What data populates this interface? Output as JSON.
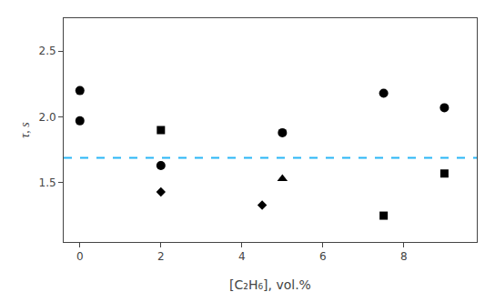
{
  "chart_data": {
    "type": "scatter",
    "xlabel": "[C₂H₆], vol.%",
    "ylabel": "τ, s",
    "series": [
      {
        "marker": "circle",
        "color": "black",
        "x": [
          0,
          0,
          2,
          5,
          7.5,
          9
        ],
        "values": [
          2.2,
          1.97,
          1.63,
          1.88,
          2.18,
          2.07
        ]
      },
      {
        "marker": "square",
        "color": "black",
        "x": [
          2,
          7.5,
          9
        ],
        "values": [
          1.9,
          1.25,
          1.57
        ]
      },
      {
        "marker": "triangle-up",
        "color": "black",
        "x": [
          5
        ],
        "values": [
          1.53
        ]
      },
      {
        "marker": "diamond",
        "color": "black",
        "x": [
          2,
          4.5
        ],
        "values": [
          1.43,
          1.33
        ]
      },
      {
        "type": "hline",
        "line_style": "dashed",
        "color": "#29B6F6",
        "values": [
          1.69
        ]
      }
    ],
    "xlim": [
      -0.4,
      9.8
    ],
    "ylim": [
      1.05,
      2.75
    ],
    "xticks": [
      0,
      2,
      4,
      6,
      8
    ],
    "yticks": [
      1.5,
      {
        "value": 2.0,
        "label": "2.0"
      },
      2.5
    ],
    "grid": false
  }
}
